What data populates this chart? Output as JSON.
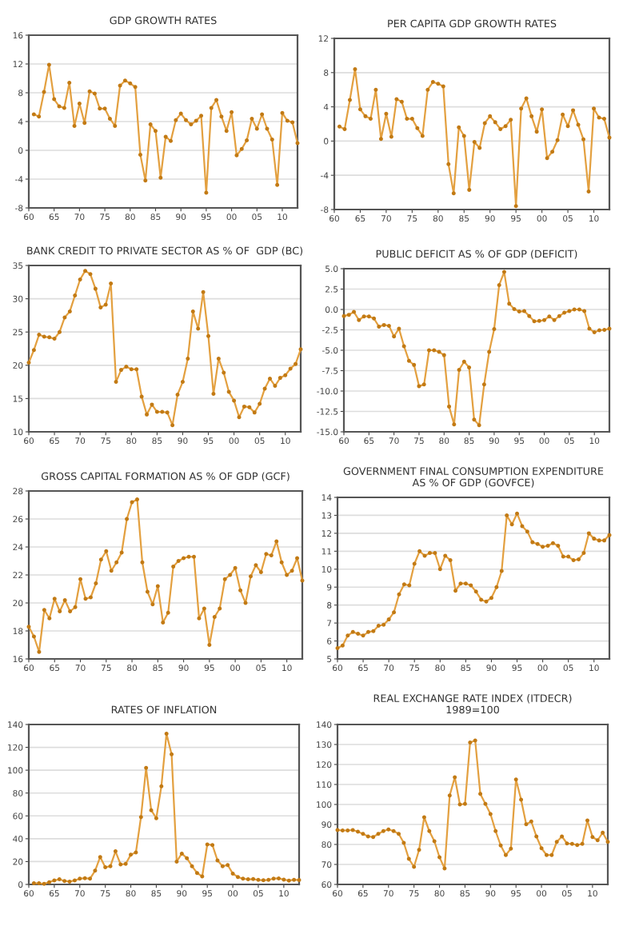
{
  "chart_data": [
    {
      "type": "line",
      "title": "GDP GROWTH RATES",
      "marker": "circle",
      "grid": "y",
      "color": "#e3a040",
      "x": [
        1961,
        1962,
        1963,
        1964,
        1965,
        1966,
        1967,
        1968,
        1969,
        1970,
        1971,
        1972,
        1973,
        1974,
        1975,
        1976,
        1977,
        1978,
        1979,
        1980,
        1981,
        1982,
        1983,
        1984,
        1985,
        1986,
        1987,
        1988,
        1989,
        1990,
        1991,
        1992,
        1993,
        1994,
        1995,
        1996,
        1997,
        1998,
        1999,
        2000,
        2001,
        2002,
        2003,
        2004,
        2005,
        2006,
        2007,
        2008,
        2009,
        2010,
        2011,
        2012,
        2013
      ],
      "values": [
        5.0,
        4.7,
        8.1,
        11.9,
        7.1,
        6.1,
        5.9,
        9.4,
        3.4,
        6.5,
        3.8,
        8.2,
        7.9,
        5.8,
        5.8,
        4.4,
        3.4,
        9.0,
        9.7,
        9.3,
        8.8,
        -0.6,
        -4.2,
        3.6,
        2.7,
        -3.8,
        1.9,
        1.3,
        4.2,
        5.1,
        4.2,
        3.6,
        4.1,
        4.8,
        -5.9,
        5.9,
        7.0,
        4.7,
        2.7,
        5.3,
        -0.7,
        0.2,
        1.4,
        4.4,
        3.0,
        5.0,
        3.0,
        1.5,
        -4.8,
        5.2,
        4.1,
        3.9,
        1.0
      ],
      "xlim": [
        1960,
        2013
      ],
      "xticks": [
        {
          "value": 1960,
          "label": "60"
        },
        {
          "value": 1965,
          "label": "65"
        },
        {
          "value": 1970,
          "label": "70"
        },
        {
          "value": 1975,
          "label": "75"
        },
        {
          "value": 1980,
          "label": "80"
        },
        {
          "value": 1985,
          "label": "85"
        },
        {
          "value": 1990,
          "label": "90"
        },
        {
          "value": 1995,
          "label": "95"
        },
        {
          "value": 2000,
          "label": "00"
        },
        {
          "value": 2005,
          "label": "05"
        },
        {
          "value": 2010,
          "label": "10"
        }
      ],
      "ylim": [
        -8,
        16
      ],
      "yticks": [
        -8,
        -4,
        0,
        4,
        8,
        12,
        16
      ]
    },
    {
      "type": "line",
      "title": "PER CAPITA GDP GROWTH RATES",
      "marker": "circle",
      "grid": "y",
      "color": "#e3a040",
      "x": [
        1961,
        1962,
        1963,
        1964,
        1965,
        1966,
        1967,
        1968,
        1969,
        1970,
        1971,
        1972,
        1973,
        1974,
        1975,
        1976,
        1977,
        1978,
        1979,
        1980,
        1981,
        1982,
        1983,
        1984,
        1985,
        1986,
        1987,
        1988,
        1989,
        1990,
        1991,
        1992,
        1993,
        1994,
        1995,
        1996,
        1997,
        1998,
        1999,
        2000,
        2001,
        2002,
        2003,
        2004,
        2005,
        2006,
        2007,
        2008,
        2009,
        2010,
        2011,
        2012,
        2013
      ],
      "values": [
        1.7,
        1.4,
        4.8,
        8.4,
        3.7,
        2.9,
        2.6,
        6.0,
        0.25,
        3.2,
        0.5,
        4.9,
        4.6,
        2.6,
        2.6,
        1.5,
        0.6,
        6.0,
        6.9,
        6.7,
        6.4,
        -2.7,
        -6.1,
        1.6,
        0.6,
        -5.7,
        -0.1,
        -0.8,
        2.1,
        2.9,
        2.2,
        1.4,
        1.75,
        2.5,
        -7.6,
        3.8,
        5.0,
        2.9,
        1.1,
        3.7,
        -2.0,
        -1.25,
        0.1,
        3.1,
        1.75,
        3.6,
        1.9,
        0.2,
        -5.9,
        3.8,
        2.75,
        2.6,
        0.4
      ],
      "xlim": [
        1960,
        2013
      ],
      "xticks": [
        {
          "value": 1960,
          "label": "60"
        },
        {
          "value": 1965,
          "label": "65"
        },
        {
          "value": 1970,
          "label": "70"
        },
        {
          "value": 1975,
          "label": "75"
        },
        {
          "value": 1980,
          "label": "80"
        },
        {
          "value": 1985,
          "label": "85"
        },
        {
          "value": 1990,
          "label": "90"
        },
        {
          "value": 1995,
          "label": "95"
        },
        {
          "value": 2000,
          "label": "00"
        },
        {
          "value": 2005,
          "label": "05"
        },
        {
          "value": 2010,
          "label": "10"
        }
      ],
      "ylim": [
        -8,
        12
      ],
      "yticks": [
        -8,
        -4,
        0,
        4,
        8,
        12
      ]
    },
    {
      "type": "line",
      "title": "BANK CREDIT TO PRIVATE SECTOR AS % OF  GDP (BC)",
      "marker": "circle",
      "grid": "y",
      "color": "#e3a040",
      "x": [
        1960,
        1961,
        1962,
        1963,
        1964,
        1965,
        1966,
        1967,
        1968,
        1969,
        1970,
        1971,
        1972,
        1973,
        1974,
        1975,
        1976,
        1977,
        1978,
        1979,
        1980,
        1981,
        1982,
        1983,
        1984,
        1985,
        1986,
        1987,
        1988,
        1989,
        1990,
        1991,
        1992,
        1993,
        1994,
        1995,
        1996,
        1997,
        1998,
        1999,
        2000,
        2001,
        2002,
        2003,
        2004,
        2005,
        2006,
        2007,
        2008,
        2009,
        2010,
        2011,
        2012,
        2013
      ],
      "values": [
        20.4,
        22.3,
        24.6,
        24.3,
        24.2,
        24.0,
        25.0,
        27.2,
        28.1,
        30.5,
        32.9,
        34.2,
        33.7,
        31.5,
        28.7,
        29.1,
        32.3,
        17.5,
        19.3,
        19.8,
        19.4,
        19.4,
        15.3,
        12.6,
        14.1,
        13.0,
        13.0,
        12.9,
        11.0,
        15.6,
        17.5,
        21.0,
        28.1,
        25.5,
        31.0,
        24.4,
        15.7,
        21.0,
        18.9,
        16.0,
        14.7,
        12.2,
        13.8,
        13.7,
        12.9,
        14.2,
        16.5,
        18.0,
        16.9,
        18.1,
        18.5,
        19.5,
        20.2,
        22.4
      ],
      "xlim": [
        1960,
        2013
      ],
      "xticks": [
        {
          "value": 1960,
          "label": "60"
        },
        {
          "value": 1965,
          "label": "65"
        },
        {
          "value": 1970,
          "label": "70"
        },
        {
          "value": 1975,
          "label": "75"
        },
        {
          "value": 1980,
          "label": "80"
        },
        {
          "value": 1985,
          "label": "85"
        },
        {
          "value": 1990,
          "label": "90"
        },
        {
          "value": 1995,
          "label": "95"
        },
        {
          "value": 2000,
          "label": "00"
        },
        {
          "value": 2005,
          "label": "05"
        },
        {
          "value": 2010,
          "label": "10"
        }
      ],
      "ylim": [
        10,
        35
      ],
      "yticks": [
        10,
        15,
        20,
        25,
        30,
        35
      ]
    },
    {
      "type": "line",
      "title": "PUBLIC DEFICIT AS % OF GDP (DEFICIT)",
      "marker": "circle",
      "grid": "y",
      "color": "#e3a040",
      "x": [
        1960,
        1961,
        1962,
        1963,
        1964,
        1965,
        1966,
        1967,
        1968,
        1969,
        1970,
        1971,
        1972,
        1973,
        1974,
        1975,
        1976,
        1977,
        1978,
        1979,
        1980,
        1981,
        1982,
        1983,
        1984,
        1985,
        1986,
        1987,
        1988,
        1989,
        1990,
        1991,
        1992,
        1993,
        1994,
        1995,
        1996,
        1997,
        1998,
        1999,
        2000,
        2001,
        2002,
        2003,
        2004,
        2005,
        2006,
        2007,
        2008,
        2009,
        2010,
        2011,
        2012,
        2013
      ],
      "values": [
        -0.8,
        -0.65,
        -0.3,
        -1.3,
        -0.85,
        -0.85,
        -1.1,
        -2.1,
        -1.9,
        -2.0,
        -3.3,
        -2.35,
        -4.5,
        -6.3,
        -6.8,
        -9.4,
        -9.2,
        -5.0,
        -5.0,
        -5.2,
        -5.6,
        -11.9,
        -14.1,
        -7.4,
        -6.4,
        -7.1,
        -13.5,
        -14.2,
        -9.2,
        -5.2,
        -2.4,
        3.0,
        4.6,
        0.7,
        0.05,
        -0.25,
        -0.2,
        -0.8,
        -1.45,
        -1.4,
        -1.3,
        -0.85,
        -1.3,
        -0.8,
        -0.4,
        -0.2,
        0.0,
        0.0,
        -0.2,
        -2.35,
        -2.8,
        -2.55,
        -2.5,
        -2.35
      ],
      "xlim": [
        1960,
        2013
      ],
      "xticks": [
        {
          "value": 1960,
          "label": "60"
        },
        {
          "value": 1965,
          "label": "65"
        },
        {
          "value": 1970,
          "label": "70"
        },
        {
          "value": 1975,
          "label": "75"
        },
        {
          "value": 1980,
          "label": "80"
        },
        {
          "value": 1985,
          "label": "85"
        },
        {
          "value": 1990,
          "label": "90"
        },
        {
          "value": 1995,
          "label": "95"
        },
        {
          "value": 2000,
          "label": "00"
        },
        {
          "value": 2005,
          "label": "05"
        },
        {
          "value": 2010,
          "label": "10"
        }
      ],
      "ylim": [
        -15,
        5
      ],
      "yticks": [
        {
          "value": -15,
          "label": "-15.0"
        },
        {
          "value": -12.5,
          "label": "-12.5"
        },
        {
          "value": -10,
          "label": "-10.0"
        },
        {
          "value": -7.5,
          "label": "-7.5"
        },
        {
          "value": -5,
          "label": "-5.0"
        },
        {
          "value": -2.5,
          "label": "-2.5"
        },
        {
          "value": 0,
          "label": "0.0"
        },
        {
          "value": 2.5,
          "label": "2.5"
        },
        {
          "value": 5,
          "label": "5.0"
        }
      ]
    },
    {
      "type": "line",
      "title": "GROSS CAPITAL FORMATION AS % OF GDP (GCF)",
      "marker": "circle",
      "grid": "y",
      "color": "#e3a040",
      "x": [
        1960,
        1961,
        1962,
        1963,
        1964,
        1965,
        1966,
        1967,
        1968,
        1969,
        1970,
        1971,
        1972,
        1973,
        1974,
        1975,
        1976,
        1977,
        1978,
        1979,
        1980,
        1981,
        1982,
        1983,
        1984,
        1985,
        1986,
        1987,
        1988,
        1989,
        1990,
        1991,
        1992,
        1993,
        1994,
        1995,
        1996,
        1997,
        1998,
        1999,
        2000,
        2001,
        2002,
        2003,
        2004,
        2005,
        2006,
        2007,
        2008,
        2009,
        2010,
        2011,
        2012,
        2013
      ],
      "values": [
        18.3,
        17.6,
        16.5,
        19.5,
        18.9,
        20.3,
        19.4,
        20.2,
        19.4,
        19.7,
        21.7,
        20.3,
        20.4,
        21.4,
        23.1,
        23.7,
        22.3,
        22.9,
        23.6,
        26.0,
        27.2,
        27.4,
        22.9,
        20.8,
        19.9,
        21.2,
        18.6,
        19.3,
        22.6,
        23.0,
        23.2,
        23.3,
        23.3,
        18.9,
        19.6,
        17.0,
        19.0,
        19.6,
        21.7,
        22.0,
        22.5,
        20.9,
        20.0,
        21.9,
        22.7,
        22.2,
        23.5,
        23.4,
        24.4,
        22.9,
        22.0,
        22.3,
        23.2,
        21.6
      ],
      "xlim": [
        1960,
        2013
      ],
      "xticks": [
        {
          "value": 1960,
          "label": "60"
        },
        {
          "value": 1965,
          "label": "65"
        },
        {
          "value": 1970,
          "label": "70"
        },
        {
          "value": 1975,
          "label": "75"
        },
        {
          "value": 1980,
          "label": "80"
        },
        {
          "value": 1985,
          "label": "85"
        },
        {
          "value": 1990,
          "label": "90"
        },
        {
          "value": 1995,
          "label": "95"
        },
        {
          "value": 2000,
          "label": "00"
        },
        {
          "value": 2005,
          "label": "05"
        },
        {
          "value": 2010,
          "label": "10"
        }
      ],
      "ylim": [
        16,
        28
      ],
      "yticks": [
        16,
        18,
        20,
        22,
        24,
        26,
        28
      ]
    },
    {
      "type": "line",
      "title": "GOVERNMENT FINAL CONSUMPTION EXPENDITURE\nAS % OF GDP (GOVFCE)",
      "marker": "circle",
      "grid": "y",
      "color": "#e3a040",
      "x": [
        1960,
        1961,
        1962,
        1963,
        1964,
        1965,
        1966,
        1967,
        1968,
        1969,
        1970,
        1971,
        1972,
        1973,
        1974,
        1975,
        1976,
        1977,
        1978,
        1979,
        1980,
        1981,
        1982,
        1983,
        1984,
        1985,
        1986,
        1987,
        1988,
        1989,
        1990,
        1991,
        1992,
        1993,
        1994,
        1995,
        1996,
        1997,
        1998,
        1999,
        2000,
        2001,
        2002,
        2003,
        2004,
        2005,
        2006,
        2007,
        2008,
        2009,
        2010,
        2011,
        2012,
        2013
      ],
      "values": [
        5.6,
        5.75,
        6.3,
        6.5,
        6.4,
        6.3,
        6.5,
        6.55,
        6.85,
        6.9,
        7.2,
        7.6,
        8.6,
        9.15,
        9.1,
        10.3,
        11.0,
        10.75,
        10.9,
        10.9,
        10.0,
        10.75,
        10.5,
        8.8,
        9.2,
        9.2,
        9.1,
        8.75,
        8.3,
        8.2,
        8.4,
        9.0,
        9.9,
        13.0,
        12.5,
        13.1,
        12.4,
        12.1,
        11.5,
        11.4,
        11.25,
        11.3,
        11.45,
        11.3,
        10.7,
        10.7,
        10.5,
        10.55,
        10.9,
        12.0,
        11.7,
        11.6,
        11.6,
        11.9
      ],
      "xlim": [
        1960,
        2013
      ],
      "xticks": [
        {
          "value": 1960,
          "label": "60"
        },
        {
          "value": 1965,
          "label": "65"
        },
        {
          "value": 1970,
          "label": "70"
        },
        {
          "value": 1975,
          "label": "75"
        },
        {
          "value": 1980,
          "label": "80"
        },
        {
          "value": 1985,
          "label": "85"
        },
        {
          "value": 1990,
          "label": "90"
        },
        {
          "value": 1995,
          "label": "95"
        },
        {
          "value": 2000,
          "label": "00"
        },
        {
          "value": 2005,
          "label": "05"
        },
        {
          "value": 2010,
          "label": "10"
        }
      ],
      "ylim": [
        5,
        14
      ],
      "yticks": [
        5,
        6,
        7,
        8,
        9,
        10,
        11,
        12,
        13,
        14
      ]
    },
    {
      "type": "line",
      "title": "RATES OF INFLATION",
      "marker": "circle",
      "grid": "y",
      "color": "#e3a040",
      "x": [
        1961,
        1962,
        1963,
        1964,
        1965,
        1966,
        1967,
        1968,
        1969,
        1970,
        1971,
        1972,
        1973,
        1974,
        1975,
        1976,
        1977,
        1978,
        1979,
        1980,
        1981,
        1982,
        1983,
        1984,
        1985,
        1986,
        1987,
        1988,
        1989,
        1990,
        1991,
        1992,
        1993,
        1994,
        1995,
        1996,
        1997,
        1998,
        1999,
        2000,
        2001,
        2002,
        2003,
        2004,
        2005,
        2006,
        2007,
        2008,
        2009,
        2010,
        2011,
        2012,
        2013
      ],
      "values": [
        1,
        1,
        0.5,
        2,
        3.5,
        4.5,
        3,
        2.5,
        3.5,
        5,
        5.5,
        5,
        12,
        24,
        15,
        16,
        29,
        17.5,
        18,
        26,
        28,
        59,
        102,
        65,
        58,
        86,
        132,
        114,
        20,
        27,
        23,
        16,
        10,
        7,
        35,
        34.5,
        21,
        16,
        17,
        9.5,
        6.5,
        5,
        4.5,
        4.7,
        4,
        3.6,
        4,
        5.1,
        5.3,
        4.2,
        3.4,
        4.1,
        3.8
      ],
      "xlim": [
        1960,
        2013
      ],
      "xticks": [
        {
          "value": 1960,
          "label": "60"
        },
        {
          "value": 1965,
          "label": "65"
        },
        {
          "value": 1970,
          "label": "70"
        },
        {
          "value": 1975,
          "label": "75"
        },
        {
          "value": 1980,
          "label": "80"
        },
        {
          "value": 1985,
          "label": "85"
        },
        {
          "value": 1990,
          "label": "90"
        },
        {
          "value": 1995,
          "label": "95"
        },
        {
          "value": 2000,
          "label": "00"
        },
        {
          "value": 2005,
          "label": "05"
        },
        {
          "value": 2010,
          "label": "10"
        }
      ],
      "ylim": [
        0,
        140
      ],
      "yticks": [
        0,
        20,
        40,
        60,
        80,
        100,
        120,
        140
      ]
    },
    {
      "type": "line",
      "title": "REAL EXCHANGE RATE INDEX (ITDECR)\n1989=100",
      "marker": "circle",
      "grid": "y",
      "color": "#e3a040",
      "x": [
        1960,
        1961,
        1962,
        1963,
        1964,
        1965,
        1966,
        1967,
        1968,
        1969,
        1970,
        1971,
        1972,
        1973,
        1974,
        1975,
        1976,
        1977,
        1978,
        1979,
        1980,
        1981,
        1982,
        1983,
        1984,
        1985,
        1986,
        1987,
        1988,
        1989,
        1990,
        1991,
        1992,
        1993,
        1994,
        1995,
        1996,
        1997,
        1998,
        1999,
        2000,
        2001,
        2002,
        2003,
        2004,
        2005,
        2006,
        2007,
        2008,
        2009,
        2010,
        2011,
        2012,
        2013
      ],
      "values": [
        87.2,
        87,
        87,
        87.2,
        86.4,
        85.3,
        84,
        83.7,
        85.3,
        86.7,
        87.5,
        86.7,
        85.3,
        80.8,
        72.8,
        68.8,
        77.3,
        93.6,
        86.7,
        81.6,
        73.6,
        68.0,
        104.5,
        113.6,
        100,
        100.3,
        131,
        132,
        105.3,
        100.3,
        95.2,
        86.7,
        79.5,
        74.7,
        77.9,
        112.5,
        102.4,
        90.1,
        91.5,
        84,
        78.1,
        74.7,
        74.7,
        81.3,
        84,
        80.5,
        80.3,
        79.7,
        80.3,
        92,
        83.7,
        82.1,
        85.9,
        81.3
      ],
      "xlim": [
        1960,
        2013
      ],
      "xticks": [
        {
          "value": 1960,
          "label": "60"
        },
        {
          "value": 1965,
          "label": "65"
        },
        {
          "value": 1970,
          "label": "70"
        },
        {
          "value": 1975,
          "label": "75"
        },
        {
          "value": 1980,
          "label": "80"
        },
        {
          "value": 1985,
          "label": "85"
        },
        {
          "value": 1990,
          "label": "90"
        },
        {
          "value": 1995,
          "label": "95"
        },
        {
          "value": 2000,
          "label": "00"
        },
        {
          "value": 2005,
          "label": "05"
        },
        {
          "value": 2010,
          "label": "10"
        }
      ],
      "ylim": [
        60,
        140
      ],
      "yticks": [
        60,
        70,
        80,
        90,
        100,
        110,
        120,
        130,
        140
      ]
    }
  ]
}
